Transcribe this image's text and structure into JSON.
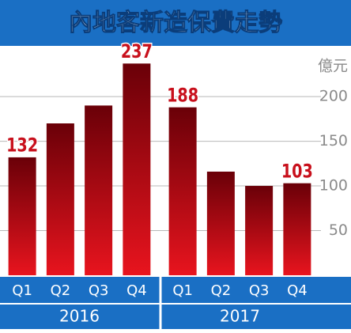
{
  "chart_data": {
    "type": "bar",
    "title": "內地客新造保費走勢",
    "unit": "億元",
    "categories": [
      "Q1",
      "Q2",
      "Q3",
      "Q4",
      "Q1",
      "Q2",
      "Q3",
      "Q4"
    ],
    "groups": [
      "2016",
      "2017"
    ],
    "values": [
      132,
      170,
      190,
      237,
      188,
      116,
      100,
      103
    ],
    "value_labels": [
      "132",
      null,
      null,
      "237",
      "188",
      null,
      null,
      "103"
    ],
    "color": "#c8101c",
    "ylim": [
      0,
      255
    ],
    "yticks": [
      50,
      100,
      150,
      200
    ],
    "grid": true
  }
}
